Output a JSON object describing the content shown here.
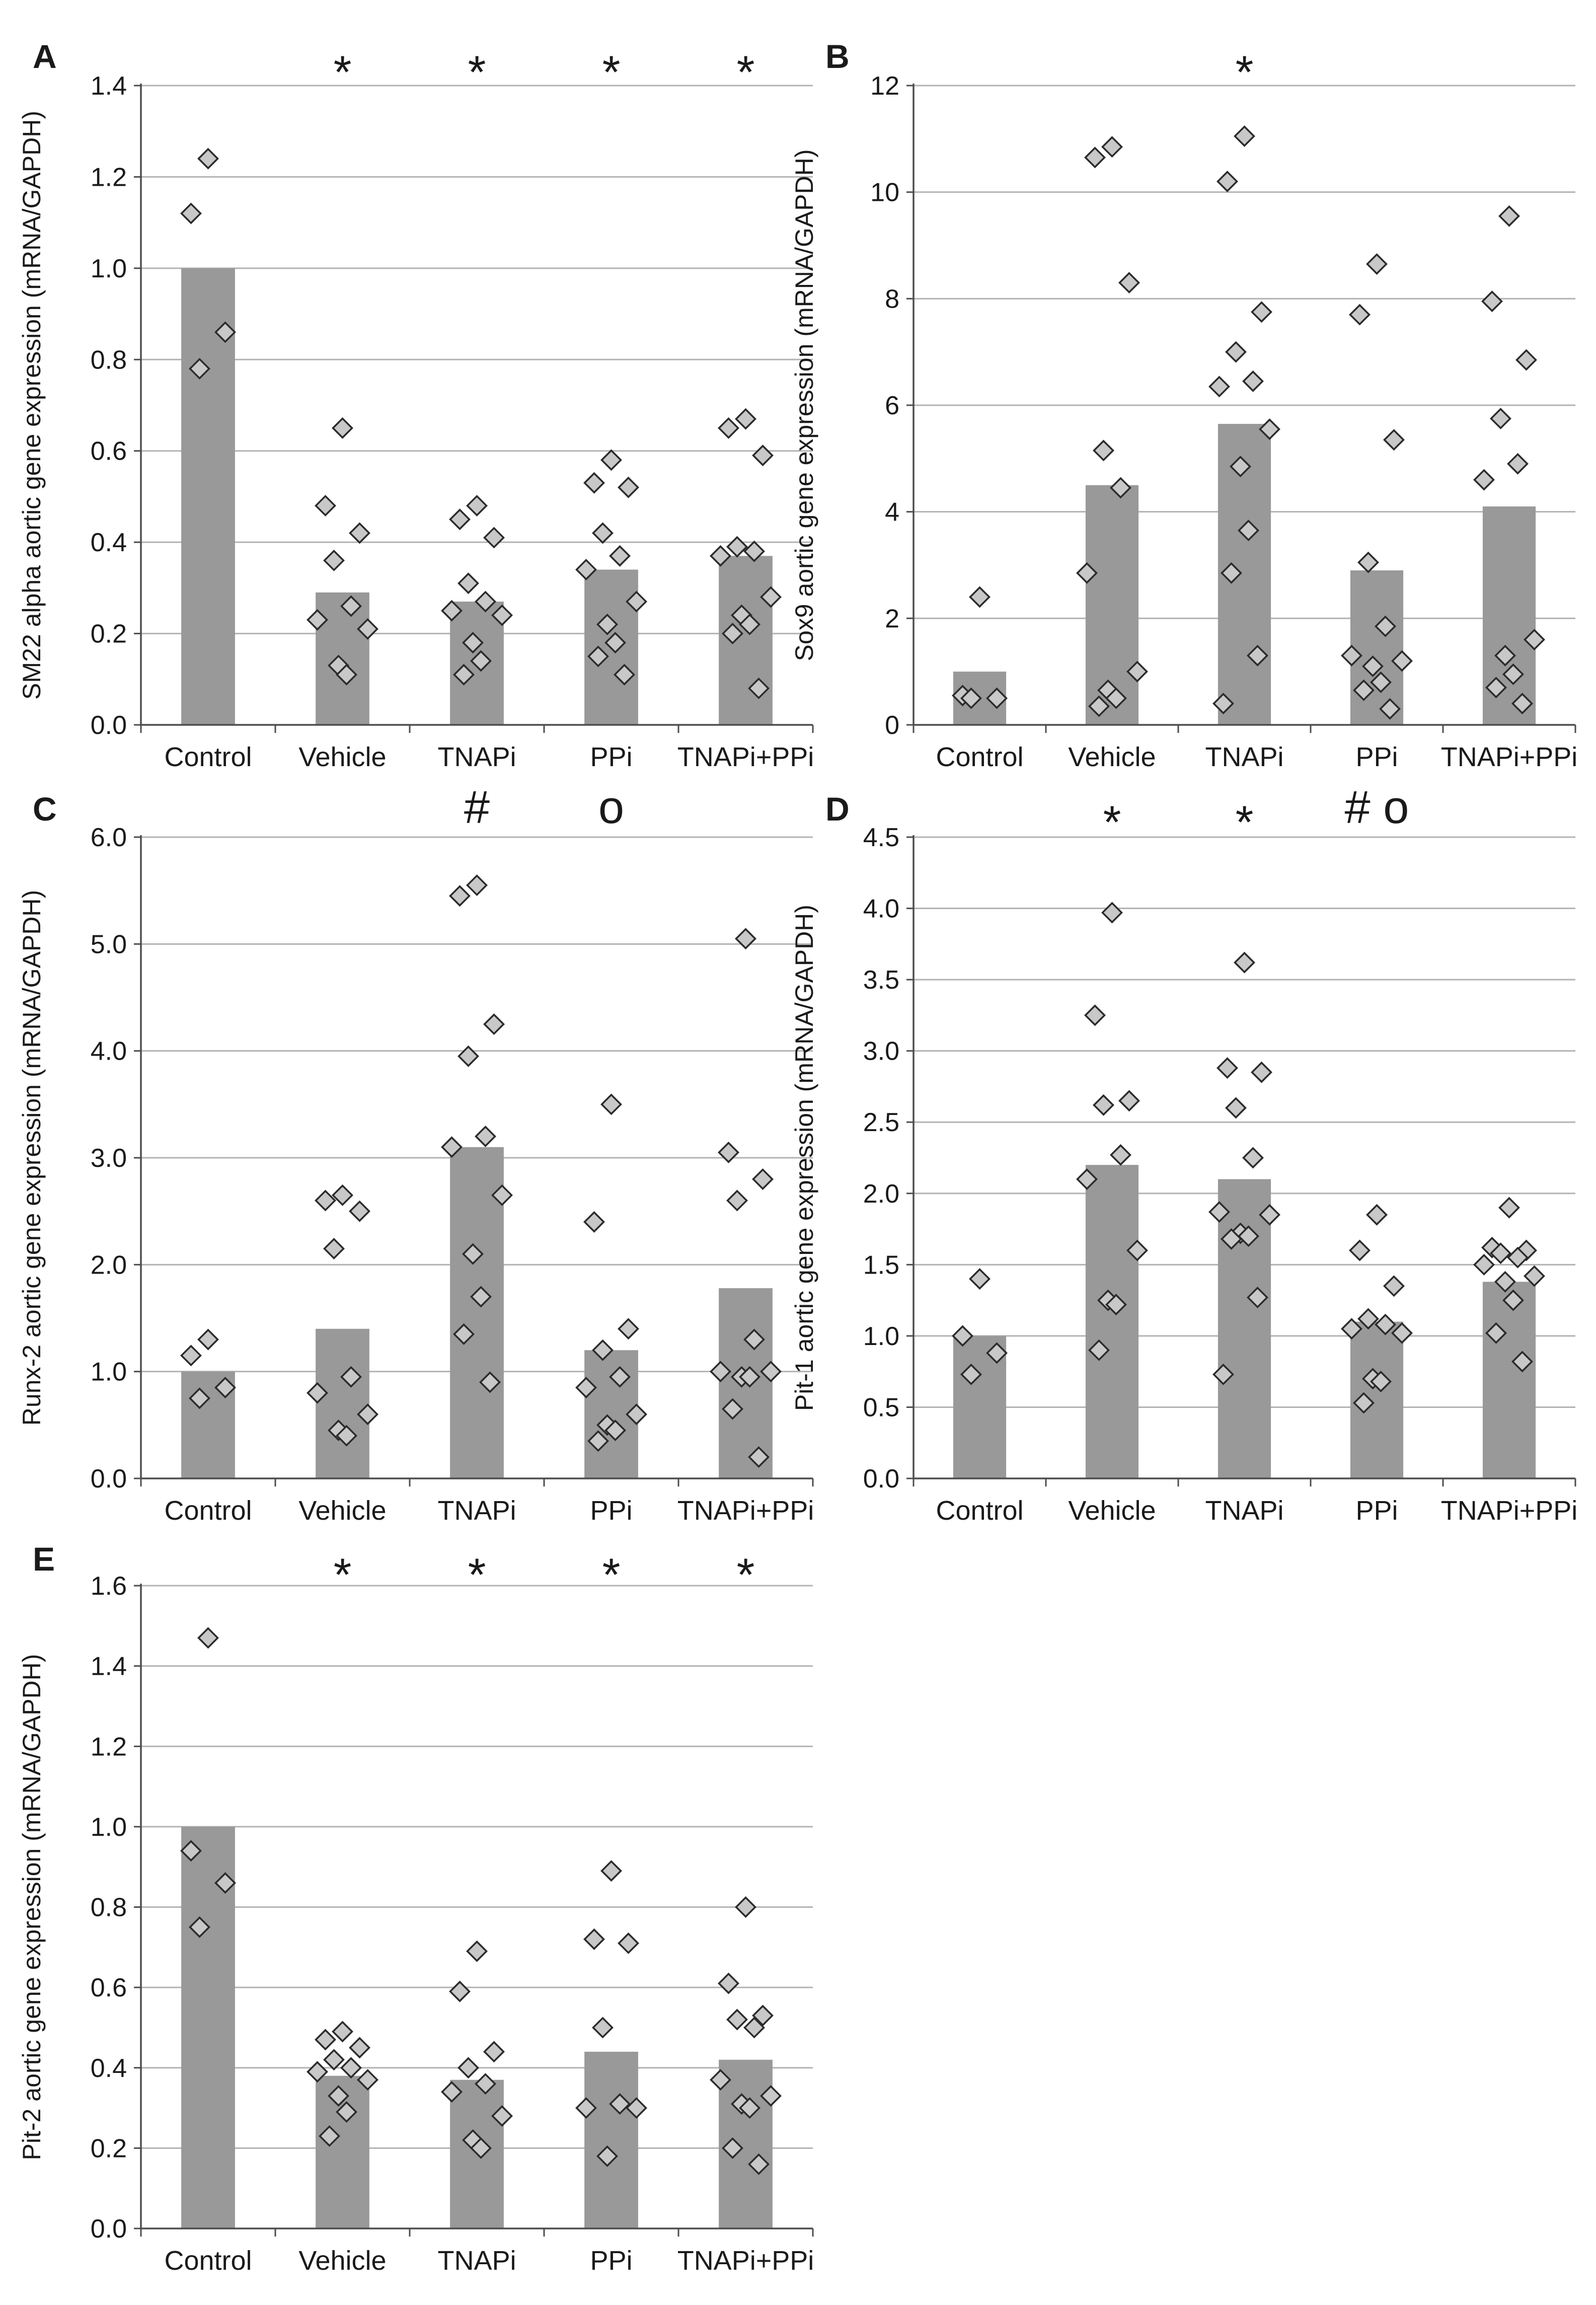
{
  "chart_data": [
    {
      "panel": "A",
      "type": "bar",
      "categories": [
        "Control",
        "Vehicle",
        "TNAPi",
        "PPi",
        "TNAPi+PPi"
      ],
      "bar_values": [
        1.0,
        0.29,
        0.27,
        0.34,
        0.37
      ],
      "points": [
        [
          1.24,
          1.12,
          0.86,
          0.78
        ],
        [
          0.65,
          0.48,
          0.42,
          0.36,
          0.26,
          0.23,
          0.21,
          0.13,
          0.11
        ],
        [
          0.48,
          0.45,
          0.41,
          0.31,
          0.27,
          0.25,
          0.24,
          0.18,
          0.14,
          0.11
        ],
        [
          0.58,
          0.53,
          0.52,
          0.42,
          0.37,
          0.34,
          0.27,
          0.22,
          0.18,
          0.15,
          0.11
        ],
        [
          0.67,
          0.65,
          0.59,
          0.39,
          0.38,
          0.37,
          0.28,
          0.24,
          0.22,
          0.2,
          0.08
        ]
      ],
      "ylabel": "SM22 alpha aortic gene expression (mRNA/GAPDH)",
      "ylim": [
        0,
        1.4
      ],
      "yticks": [
        "0.0",
        "0.2",
        "0.4",
        "0.6",
        "0.8",
        "1.0",
        "1.2",
        "1.4"
      ],
      "significance": [
        "",
        "*",
        "*",
        "*",
        "*"
      ]
    },
    {
      "panel": "B",
      "type": "bar",
      "categories": [
        "Control",
        "Vehicle",
        "TNAPi",
        "PPi",
        "TNAPi+PPi"
      ],
      "bar_values": [
        1.0,
        4.5,
        5.65,
        2.9,
        4.1
      ],
      "points": [
        [
          2.4,
          0.55,
          0.5,
          0.5
        ],
        [
          10.85,
          10.65,
          8.3,
          5.15,
          4.45,
          2.85,
          1.0,
          0.65,
          0.5,
          0.35
        ],
        [
          11.05,
          10.2,
          7.75,
          7.0,
          6.45,
          6.35,
          5.55,
          4.85,
          3.65,
          2.85,
          1.3,
          0.4
        ],
        [
          8.65,
          7.7,
          5.35,
          3.05,
          1.85,
          1.3,
          1.2,
          1.1,
          0.8,
          0.65,
          0.3
        ],
        [
          9.55,
          7.95,
          6.85,
          5.75,
          4.9,
          4.6,
          1.6,
          1.3,
          0.95,
          0.7,
          0.4
        ]
      ],
      "ylabel": "Sox9 aortic gene expression (mRNA/GAPDH)",
      "ylim": [
        0,
        12
      ],
      "yticks": [
        "0",
        "2",
        "4",
        "6",
        "8",
        "10",
        "12"
      ],
      "significance": [
        "",
        "",
        "*",
        "",
        ""
      ]
    },
    {
      "panel": "C",
      "type": "bar",
      "categories": [
        "Control",
        "Vehicle",
        "TNAPi",
        "PPi",
        "TNAPi+PPi"
      ],
      "bar_values": [
        1.0,
        1.4,
        3.1,
        1.2,
        1.78
      ],
      "points": [
        [
          1.3,
          1.15,
          0.85,
          0.75
        ],
        [
          2.65,
          2.6,
          2.5,
          2.15,
          0.95,
          0.8,
          0.6,
          0.45,
          0.4
        ],
        [
          5.55,
          5.45,
          4.25,
          3.95,
          3.2,
          3.1,
          2.65,
          2.1,
          1.7,
          1.35,
          0.9
        ],
        [
          3.5,
          2.4,
          1.4,
          1.2,
          0.95,
          0.85,
          0.6,
          0.5,
          0.45,
          0.35
        ],
        [
          5.05,
          3.05,
          2.8,
          2.6,
          1.3,
          1.0,
          1.0,
          0.95,
          0.95,
          0.65,
          0.2
        ]
      ],
      "ylabel": "Runx-2 aortic gene expression (mRNA/GAPDH)",
      "ylim": [
        0,
        6.0
      ],
      "yticks": [
        "0.0",
        "1.0",
        "2.0",
        "3.0",
        "4.0",
        "5.0",
        "6.0"
      ],
      "significance": [
        "",
        "",
        "#",
        "o",
        ""
      ]
    },
    {
      "panel": "D",
      "type": "bar",
      "categories": [
        "Control",
        "Vehicle",
        "TNAPi",
        "PPi",
        "TNAPi+PPi"
      ],
      "bar_values": [
        1.0,
        2.2,
        2.1,
        1.1,
        1.38
      ],
      "points": [
        [
          1.4,
          1.0,
          0.88,
          0.73
        ],
        [
          3.97,
          3.25,
          2.65,
          2.62,
          2.27,
          2.1,
          1.6,
          1.25,
          1.22,
          0.9
        ],
        [
          3.62,
          2.88,
          2.85,
          2.6,
          2.25,
          1.87,
          1.85,
          1.72,
          1.7,
          1.68,
          1.27,
          0.73
        ],
        [
          1.85,
          1.6,
          1.35,
          1.12,
          1.08,
          1.05,
          1.02,
          0.7,
          0.68,
          0.53
        ],
        [
          1.9,
          1.62,
          1.6,
          1.58,
          1.55,
          1.5,
          1.42,
          1.38,
          1.25,
          1.02,
          0.82
        ]
      ],
      "ylabel": "Pit-1 aortic gene expression (mRNA/GAPDH)",
      "ylim": [
        0,
        4.5
      ],
      "yticks": [
        "0.0",
        "0.5",
        "1.0",
        "1.5",
        "2.0",
        "2.5",
        "3.0",
        "3.5",
        "4.0",
        "4.5"
      ],
      "significance": [
        "",
        "*",
        "*",
        "# o",
        ""
      ]
    },
    {
      "panel": "E",
      "type": "bar",
      "categories": [
        "Control",
        "Vehicle",
        "TNAPi",
        "PPi",
        "TNAPi+PPi"
      ],
      "bar_values": [
        1.0,
        0.38,
        0.37,
        0.44,
        0.42
      ],
      "points": [
        [
          1.47,
          0.94,
          0.86,
          0.75
        ],
        [
          0.49,
          0.47,
          0.45,
          0.42,
          0.4,
          0.39,
          0.37,
          0.33,
          0.29,
          0.23
        ],
        [
          0.69,
          0.59,
          0.44,
          0.4,
          0.36,
          0.34,
          0.28,
          0.22,
          0.2
        ],
        [
          0.89,
          0.72,
          0.71,
          0.5,
          0.31,
          0.3,
          0.3,
          0.18
        ],
        [
          0.8,
          0.61,
          0.53,
          0.52,
          0.5,
          0.37,
          0.33,
          0.31,
          0.3,
          0.2,
          0.16
        ]
      ],
      "ylabel": "Pit-2 aortic gene expression (mRNA/GAPDH)",
      "ylim": [
        0,
        1.6
      ],
      "yticks": [
        "0.0",
        "0.2",
        "0.4",
        "0.6",
        "0.8",
        "1.0",
        "1.2",
        "1.4",
        "1.6"
      ],
      "significance": [
        "",
        "*",
        "*",
        "*",
        "*"
      ]
    }
  ],
  "colors": {
    "bar": "#999999",
    "point_fill": "#c8c8c8",
    "point_stroke": "#2b2b2b",
    "grid": "#b3b3b3",
    "axis": "#4d4d4d"
  }
}
